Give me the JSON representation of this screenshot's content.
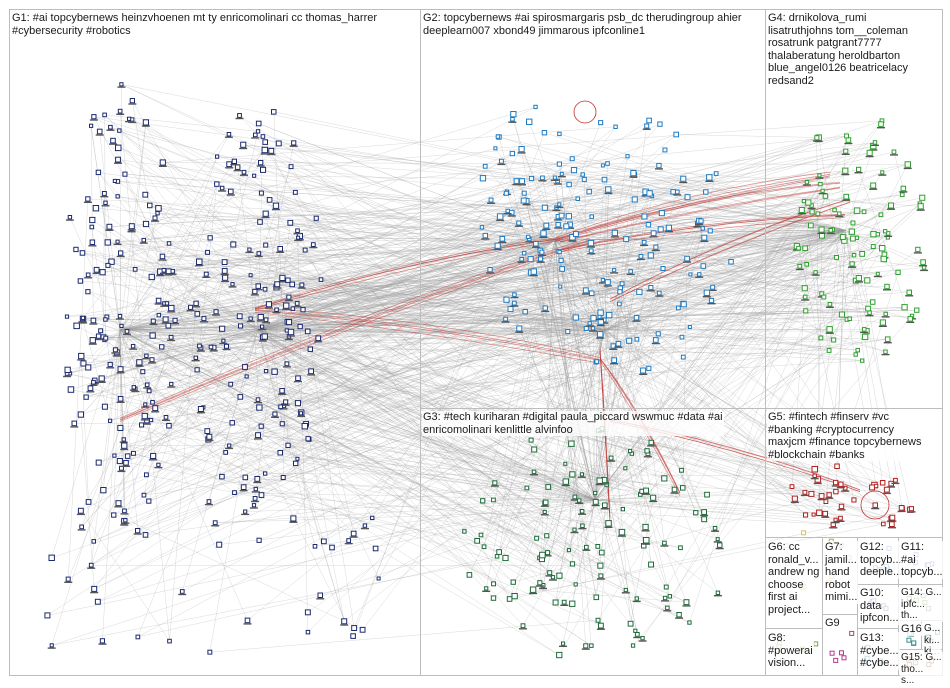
{
  "groups": [
    {
      "id": "G1",
      "label": "G1: #ai topcybernews heinzvhoenen mt ty enricomolinari cc thomas_harrer\n#cybersecurity #robotics",
      "color": "#1c2a6e"
    },
    {
      "id": "G2",
      "label": "G2: topcybernews #ai spirosmargaris psb_dc therudingroup ahier\ndeeplearn007 xbond49 jimmarous ipfconline1",
      "color": "#1f7bc2"
    },
    {
      "id": "G3",
      "label": "G3: #tech kuriharan #digital paula_piccard wswmuc #data #ai\nenricomolinari kenlittle alvinfoo",
      "color": "#1d6b3a"
    },
    {
      "id": "G4",
      "label": "G4: drnikolova_rumi\nlisatruthjohns tom__coleman\nrosatrunk patgrant7777\nthalaberatung heroldbarton\nblue_angel0126 beatricelacy\nredsand2",
      "color": "#2ea02e"
    },
    {
      "id": "G5",
      "label": "G5: #fintech #finserv #vc\n#banking #cryptocurrency\nmaxjcm #finance topcybernews\n#blockchain #banks",
      "color": "#b0201e"
    },
    {
      "id": "G6",
      "label": "G6: cc\nronald_v...\nandrew ng\nchoose\nfirst ai\nproject...",
      "color": "#d8c06a"
    },
    {
      "id": "G7",
      "label": "G7:\njamil...\nhand\nrobot\nmimi...",
      "color": "#c7a24b"
    },
    {
      "id": "G8",
      "label": "G8:\n#powerai\nvision...",
      "color": "#7aa63b"
    },
    {
      "id": "G9",
      "label": "G9",
      "color": "#b33a8c"
    },
    {
      "id": "G10",
      "label": "G10:\ndata\nipfcon...",
      "color": "#6b4aa0"
    },
    {
      "id": "G11",
      "label": "G11:\n#ai\ntopcyb...",
      "color": "#8c5ab4"
    },
    {
      "id": "G12",
      "label": "G12:\ntopcyb...\ndeeple...",
      "color": "#4a7fb3"
    },
    {
      "id": "G13",
      "label": "G13:\n#cybe...\n#cybe...",
      "color": "#2f6f8f"
    },
    {
      "id": "G14",
      "label": "G14: G...\nipfc...\nth...",
      "color": "#5e8f3a"
    },
    {
      "id": "G15",
      "label": "G15: G...\ntho...\ns...",
      "color": "#7a4f2a"
    },
    {
      "id": "G16",
      "label": "G16",
      "color": "#3f8f8a"
    },
    {
      "id": "G17",
      "label": "G...\nki...\nki...",
      "color": "#3a7a5a"
    }
  ],
  "edge_colors": {
    "gray": "#9a9a9a",
    "red": "#c0302a"
  }
}
